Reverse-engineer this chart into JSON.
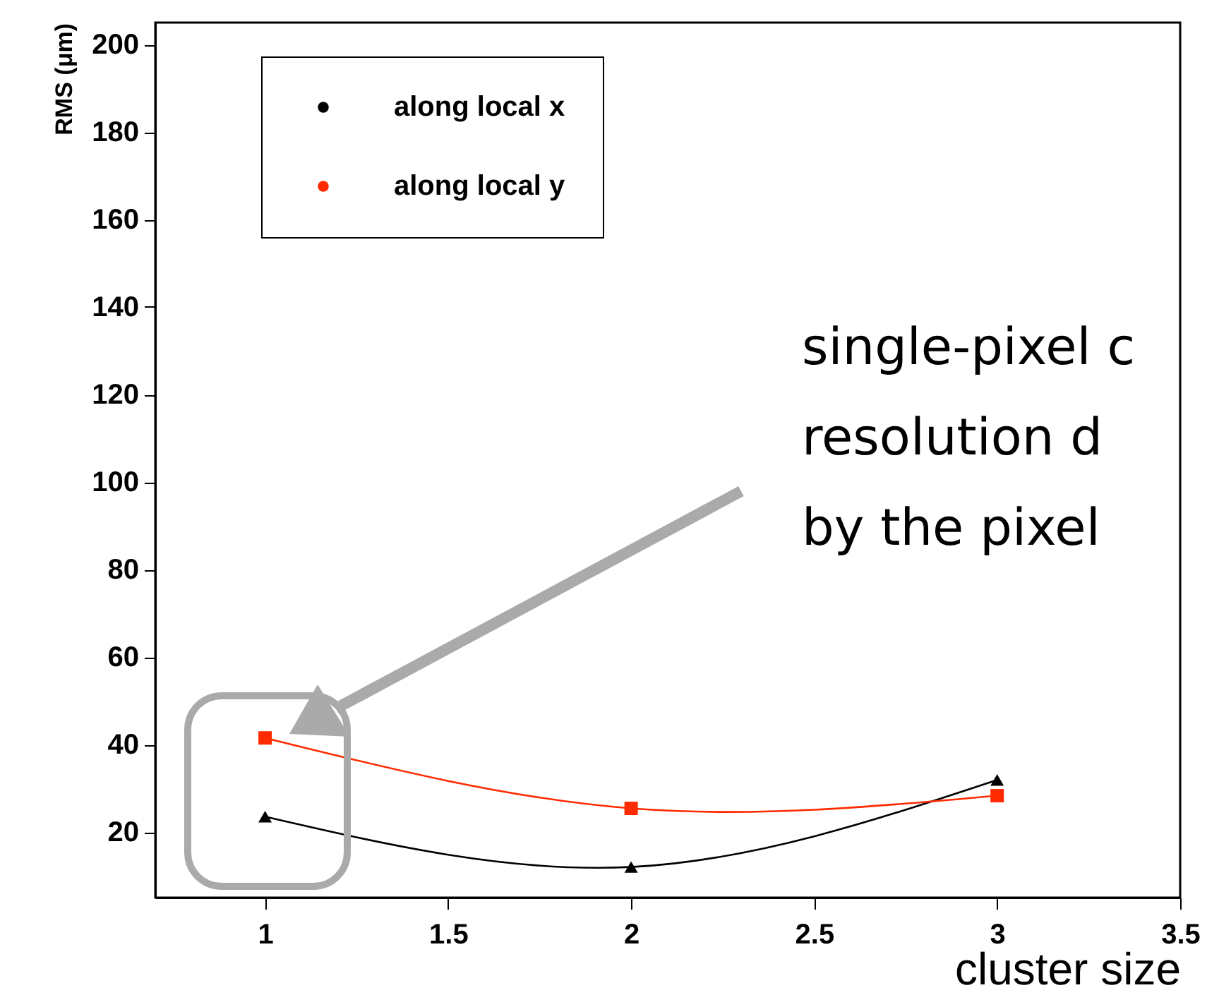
{
  "chart_data": {
    "type": "line",
    "xlabel": "cluster size",
    "ylabel": "RMS (μm)",
    "x": [
      1,
      2,
      3
    ],
    "series": [
      {
        "name": "along local x",
        "color": "#000000",
        "marker": "triangle",
        "values": [
          23.5,
          12,
          31.9
        ]
      },
      {
        "name": "along local y",
        "color": "#ff2a00",
        "marker": "square",
        "values": [
          41.5,
          25.4,
          28.3
        ]
      }
    ],
    "xlim": [
      0.7,
      3.5
    ],
    "xticks": [
      1,
      1.5,
      2,
      2.5,
      3,
      3.5
    ],
    "ylim": [
      5,
      205
    ],
    "yticks": [
      20,
      40,
      60,
      80,
      100,
      120,
      140,
      160,
      180,
      200
    ],
    "legend": "top left",
    "grid": false,
    "annotations": [
      "single-pixel c",
      "resolution d",
      "by the pixel"
    ]
  }
}
